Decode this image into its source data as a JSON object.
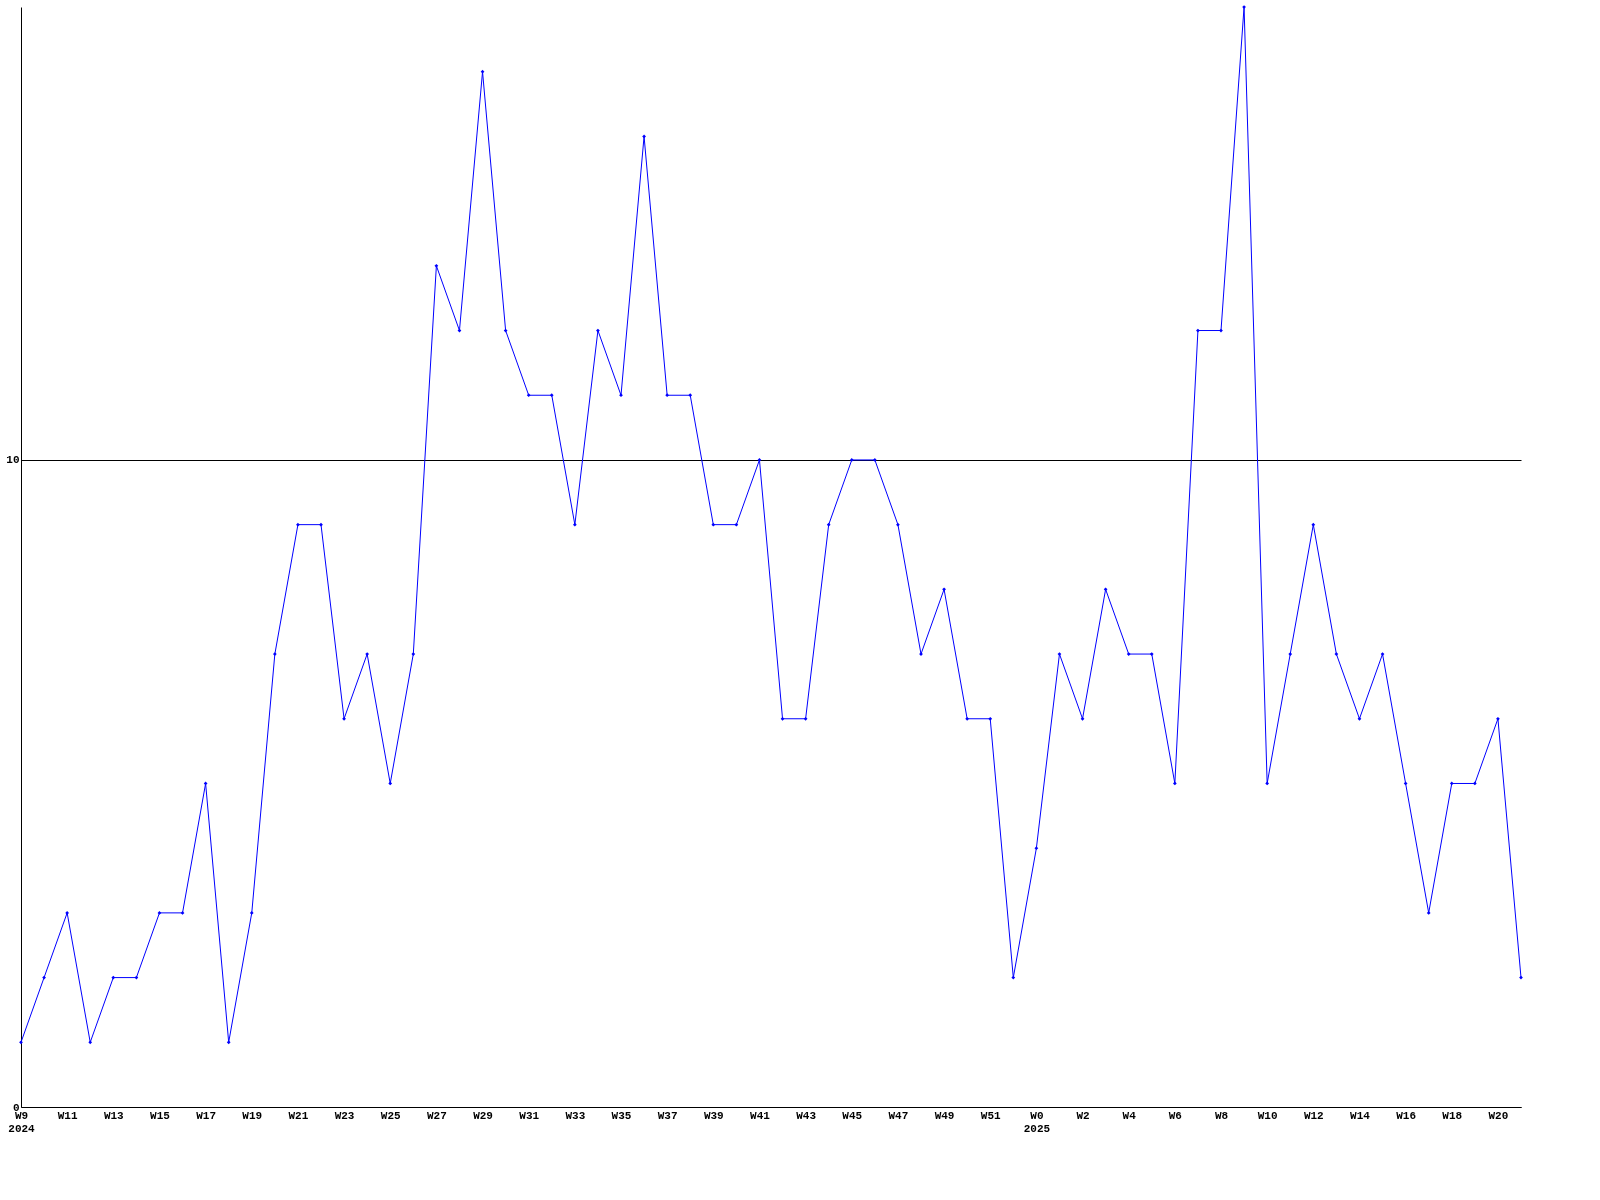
{
  "chart_data": {
    "type": "line",
    "categories": [
      "W9\n2024",
      null,
      "W11",
      null,
      "W13",
      null,
      "W15",
      null,
      "W17",
      null,
      "W19",
      null,
      "W21",
      null,
      "W23",
      null,
      "W25",
      null,
      "W27",
      null,
      "W29",
      null,
      "W31",
      null,
      "W33",
      null,
      "W35",
      null,
      "W37",
      null,
      "W39",
      null,
      "W41",
      null,
      "W43",
      null,
      "W45",
      null,
      "W47",
      null,
      "W49",
      null,
      "W51",
      null,
      "W0\n2025",
      null,
      "W2",
      null,
      "W4",
      null,
      "W6",
      null,
      "W8",
      null,
      "W10",
      null,
      "W12",
      null,
      "W14",
      null,
      "W16",
      null,
      "W18",
      null,
      "W20",
      null
    ],
    "series": [
      {
        "color": "#0000ff",
        "values": [
          1,
          2,
          3,
          1,
          2,
          2,
          3,
          3,
          5,
          1,
          3,
          7,
          9,
          9,
          6,
          7,
          5,
          7,
          13,
          12,
          16,
          12,
          11,
          11,
          9,
          12,
          11,
          15,
          11,
          11,
          9,
          9,
          10,
          6,
          6,
          9,
          10,
          10,
          9,
          7,
          8,
          6,
          6,
          2,
          4,
          7,
          6,
          8,
          7,
          7,
          5,
          12,
          12,
          17,
          5,
          7,
          9,
          7,
          6,
          7,
          5,
          3,
          5,
          5,
          6,
          2
        ]
      }
    ],
    "ylim": [
      0,
      17
    ],
    "yticks": [
      0,
      10
    ],
    "grid": "y",
    "marker": "diamond",
    "line_style": "solid"
  }
}
